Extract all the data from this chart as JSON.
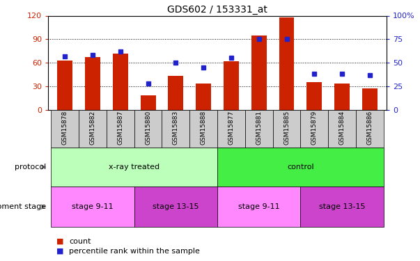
{
  "title": "GDS602 / 153331_at",
  "samples": [
    "GSM15878",
    "GSM15882",
    "GSM15887",
    "GSM15880",
    "GSM15883",
    "GSM15888",
    "GSM15877",
    "GSM15881",
    "GSM15885",
    "GSM15879",
    "GSM15884",
    "GSM15886"
  ],
  "count_values": [
    63,
    67,
    72,
    18,
    43,
    33,
    62,
    95,
    118,
    35,
    33,
    27
  ],
  "percentile_values": [
    57,
    58,
    62,
    28,
    50,
    45,
    55,
    75,
    75,
    38,
    38,
    37
  ],
  "bar_color": "#cc2200",
  "dot_color": "#2222cc",
  "left_ylim": [
    0,
    120
  ],
  "right_ylim": [
    0,
    100
  ],
  "left_yticks": [
    0,
    30,
    60,
    90,
    120
  ],
  "right_yticks": [
    0,
    25,
    50,
    75,
    100
  ],
  "right_yticklabels": [
    "0",
    "25",
    "50",
    "75",
    "100%"
  ],
  "grid_values": [
    30,
    60,
    90
  ],
  "protocol_label": "protocol",
  "devstage_label": "development stage",
  "protocol_groups": [
    {
      "label": "x-ray treated",
      "start": 0,
      "end": 6,
      "color": "#bbffbb"
    },
    {
      "label": "control",
      "start": 6,
      "end": 12,
      "color": "#44ee44"
    }
  ],
  "devstage_groups": [
    {
      "label": "stage 9-11",
      "start": 0,
      "end": 3,
      "color": "#ff88ff"
    },
    {
      "label": "stage 13-15",
      "start": 3,
      "end": 6,
      "color": "#cc44cc"
    },
    {
      "label": "stage 9-11",
      "start": 6,
      "end": 9,
      "color": "#ff88ff"
    },
    {
      "label": "stage 13-15",
      "start": 9,
      "end": 12,
      "color": "#cc44cc"
    }
  ],
  "legend_count_color": "#cc2200",
  "legend_dot_color": "#2222cc",
  "tick_label_bg": "#cccccc",
  "fig_width": 6.03,
  "fig_height": 3.75,
  "dpi": 100
}
